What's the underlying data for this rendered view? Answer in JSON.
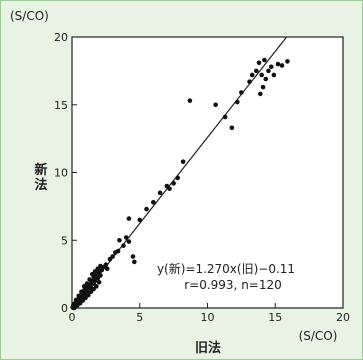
{
  "chart_data": {
    "type": "scatter",
    "title": "",
    "xlabel": "旧法",
    "ylabel": "新法",
    "x_unit": "(S/CO)",
    "y_unit": "(S/CO)",
    "xlim": [
      0,
      20
    ],
    "ylim": [
      0,
      20
    ],
    "x_ticks": [
      "0",
      "5",
      "10",
      "15",
      "20"
    ],
    "y_ticks": [
      "0",
      "5",
      "10",
      "15",
      "20"
    ],
    "annotation": {
      "line1": "y(新)=1.270x(旧)−0.11",
      "line2": "r=0.993, n=120"
    },
    "regression": {
      "slope": 1.27,
      "intercept": -0.11
    },
    "grid": false,
    "points": [
      [
        0.1,
        0.1
      ],
      [
        0.2,
        0.2
      ],
      [
        0.2,
        0.3
      ],
      [
        0.3,
        0.3
      ],
      [
        0.3,
        0.4
      ],
      [
        0.4,
        0.4
      ],
      [
        0.4,
        0.5
      ],
      [
        0.5,
        0.5
      ],
      [
        0.5,
        0.7
      ],
      [
        0.6,
        0.6
      ],
      [
        0.6,
        0.8
      ],
      [
        0.7,
        0.8
      ],
      [
        0.7,
        1.0
      ],
      [
        0.8,
        0.9
      ],
      [
        0.8,
        1.1
      ],
      [
        0.9,
        1.1
      ],
      [
        0.9,
        1.3
      ],
      [
        1.0,
        1.2
      ],
      [
        1.0,
        1.4
      ],
      [
        1.1,
        1.3
      ],
      [
        1.2,
        1.5
      ],
      [
        1.2,
        1.7
      ],
      [
        1.3,
        1.6
      ],
      [
        1.4,
        1.8
      ],
      [
        1.4,
        1.5
      ],
      [
        1.5,
        2.0
      ],
      [
        1.6,
        1.8
      ],
      [
        1.6,
        2.3
      ],
      [
        1.7,
        2.0
      ],
      [
        1.8,
        2.4
      ],
      [
        1.9,
        2.2
      ],
      [
        2.0,
        2.6
      ],
      [
        2.1,
        2.4
      ],
      [
        2.2,
        2.8
      ],
      [
        2.3,
        3.0
      ],
      [
        2.5,
        3.2
      ],
      [
        2.6,
        2.9
      ],
      [
        2.8,
        3.6
      ],
      [
        3.0,
        3.8
      ],
      [
        3.2,
        4.1
      ],
      [
        3.4,
        4.2
      ],
      [
        3.5,
        5.0
      ],
      [
        3.8,
        4.6
      ],
      [
        4.0,
        5.2
      ],
      [
        4.2,
        4.9
      ],
      [
        4.5,
        3.8
      ],
      [
        4.6,
        3.4
      ],
      [
        4.2,
        6.6
      ],
      [
        5.0,
        6.5
      ],
      [
        5.5,
        7.3
      ],
      [
        6.0,
        7.8
      ],
      [
        6.5,
        8.5
      ],
      [
        7.0,
        9.0
      ],
      [
        7.2,
        8.8
      ],
      [
        7.5,
        9.2
      ],
      [
        7.8,
        9.6
      ],
      [
        8.2,
        10.8
      ],
      [
        8.7,
        15.3
      ],
      [
        10.6,
        15.0
      ],
      [
        11.3,
        14.1
      ],
      [
        11.8,
        13.3
      ],
      [
        12.2,
        15.2
      ],
      [
        12.5,
        15.9
      ],
      [
        13.1,
        16.7
      ],
      [
        13.3,
        17.2
      ],
      [
        13.6,
        17.5
      ],
      [
        13.8,
        18.1
      ],
      [
        14.0,
        17.2
      ],
      [
        14.1,
        16.3
      ],
      [
        14.3,
        16.9
      ],
      [
        14.5,
        17.5
      ],
      [
        14.7,
        17.8
      ],
      [
        14.9,
        17.2
      ],
      [
        15.2,
        18.0
      ],
      [
        15.5,
        17.9
      ],
      [
        15.9,
        18.2
      ],
      [
        14.2,
        18.3
      ],
      [
        13.9,
        15.8
      ],
      [
        0.15,
        0.0
      ],
      [
        0.25,
        0.1
      ],
      [
        0.35,
        0.2
      ],
      [
        0.45,
        0.3
      ],
      [
        0.55,
        0.4
      ],
      [
        0.65,
        0.5
      ],
      [
        0.75,
        0.6
      ],
      [
        0.85,
        0.7
      ],
      [
        0.95,
        0.9
      ],
      [
        1.05,
        1.0
      ],
      [
        1.15,
        1.1
      ],
      [
        1.25,
        1.2
      ],
      [
        0.3,
        0.6
      ],
      [
        0.5,
        0.9
      ],
      [
        0.7,
        1.2
      ],
      [
        0.9,
        1.6
      ],
      [
        1.1,
        1.8
      ],
      [
        1.3,
        2.1
      ],
      [
        1.5,
        2.5
      ],
      [
        1.7,
        2.7
      ],
      [
        1.9,
        2.9
      ],
      [
        2.1,
        3.1
      ],
      [
        0.2,
        0.05
      ],
      [
        0.4,
        0.2
      ],
      [
        0.6,
        0.35
      ],
      [
        0.8,
        0.55
      ],
      [
        1.0,
        0.75
      ],
      [
        1.2,
        0.95
      ],
      [
        1.4,
        1.2
      ],
      [
        1.6,
        1.4
      ],
      [
        1.8,
        1.6
      ],
      [
        2.0,
        1.9
      ],
      [
        0.05,
        0.05
      ],
      [
        0.1,
        0.2
      ],
      [
        0.15,
        0.3
      ],
      [
        0.2,
        0.1
      ],
      [
        0.25,
        0.25
      ],
      [
        0.3,
        0.15
      ],
      [
        0.35,
        0.35
      ],
      [
        0.4,
        0.3
      ],
      [
        0.45,
        0.55
      ],
      [
        0.5,
        0.45
      ]
    ]
  }
}
